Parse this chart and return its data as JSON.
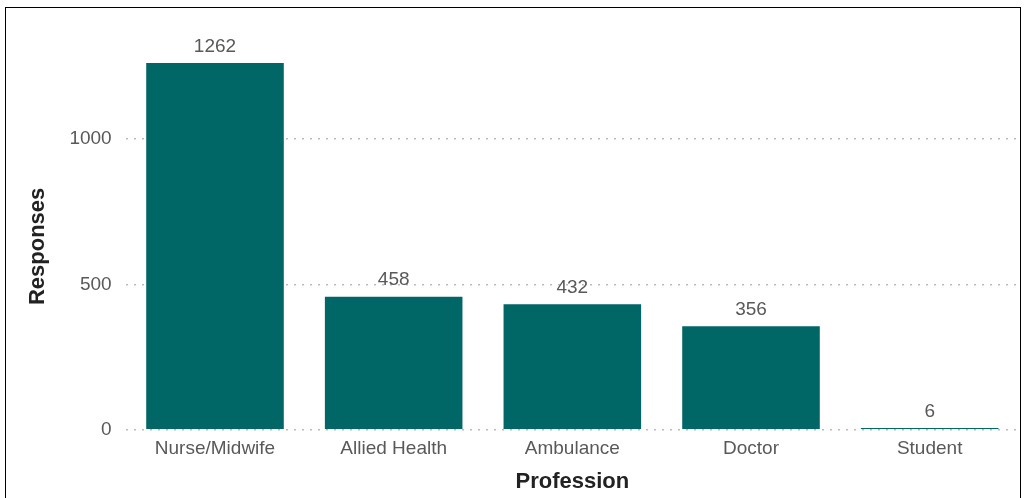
{
  "chart_data": {
    "type": "bar",
    "xlabel": "Profession",
    "ylabel": "Responses",
    "categories": [
      "Nurse/Midwife",
      "Allied Health",
      "Ambulance",
      "Doctor",
      "Student"
    ],
    "values": [
      1262,
      458,
      432,
      356,
      6
    ],
    "color": "#006666",
    "ylim": [
      0,
      1262
    ],
    "yticks": [
      0,
      500,
      1000
    ],
    "grid": "y",
    "data_labels": true,
    "legend": false
  }
}
